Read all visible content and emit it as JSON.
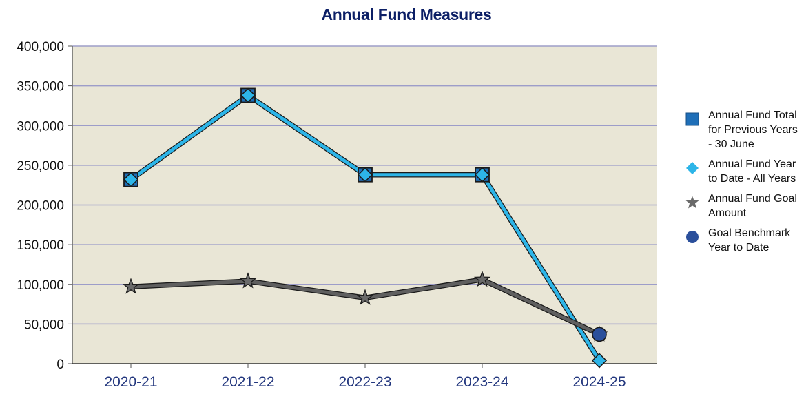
{
  "chart_data": {
    "type": "line",
    "title": "Annual Fund Measures",
    "categories": [
      "2020-21",
      "2021-22",
      "2022-23",
      "2023-24",
      "2024-25"
    ],
    "ylim": [
      0,
      400000
    ],
    "yticks": [
      0,
      50000,
      100000,
      150000,
      200000,
      250000,
      300000,
      350000,
      400000
    ],
    "ytick_labels": [
      "0",
      "50,000",
      "100,000",
      "150,000",
      "200,000",
      "250,000",
      "300,000",
      "350,000",
      "400,000"
    ],
    "grid": true,
    "legend_position": "right",
    "plot_background": "#e9e6d6",
    "series": [
      {
        "name": "Annual Fund Total for Previous Years - 30 June",
        "marker": "square",
        "color": "#1f6fb8",
        "line": false,
        "values": [
          232000,
          338000,
          238000,
          238000,
          null
        ]
      },
      {
        "name": "Annual Fund Year to Date - All Years",
        "marker": "diamond",
        "color": "#2db5e8",
        "line": true,
        "values": [
          232000,
          338000,
          238000,
          238000,
          4000
        ]
      },
      {
        "name": "Annual Fund Goal Amount",
        "marker": "star",
        "color": "#5f5f5f",
        "line": true,
        "values": [
          97000,
          104000,
          83000,
          106000,
          37000
        ]
      },
      {
        "name": "Goal Benchmark Year to Date",
        "marker": "circle",
        "color": "#2a4f9b",
        "line": false,
        "values": [
          null,
          null,
          null,
          null,
          37000
        ]
      }
    ]
  }
}
